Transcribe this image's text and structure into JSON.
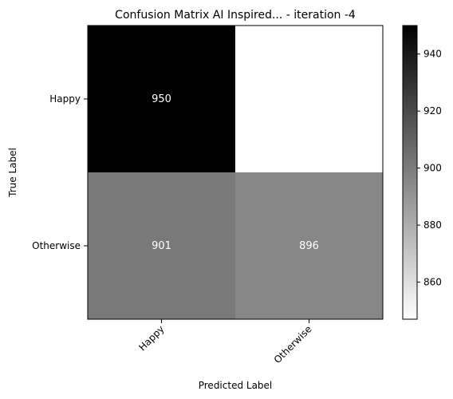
{
  "chart_data": {
    "type": "heatmap",
    "title": "Confusion Matrix AI Inspired... - iteration -4",
    "xlabel": "Predicted Label",
    "ylabel": "True Label",
    "x_categories": [
      "Happy",
      "Otherwise"
    ],
    "y_categories": [
      "Happy",
      "Otherwise"
    ],
    "cells": [
      {
        "row": 0,
        "col": 0,
        "value": 950,
        "label": "950"
      },
      {
        "row": 0,
        "col": 1,
        "value": 847,
        "label": ""
      },
      {
        "row": 1,
        "col": 0,
        "value": 901,
        "label": "901"
      },
      {
        "row": 1,
        "col": 1,
        "value": 896,
        "label": "896"
      }
    ],
    "colormap": "gray_r",
    "colorbar": {
      "min": 847,
      "max": 950,
      "ticks": [
        860,
        880,
        900,
        920,
        940
      ],
      "tick_labels": [
        "860",
        "880",
        "900",
        "920",
        "940"
      ]
    },
    "grid": false
  }
}
